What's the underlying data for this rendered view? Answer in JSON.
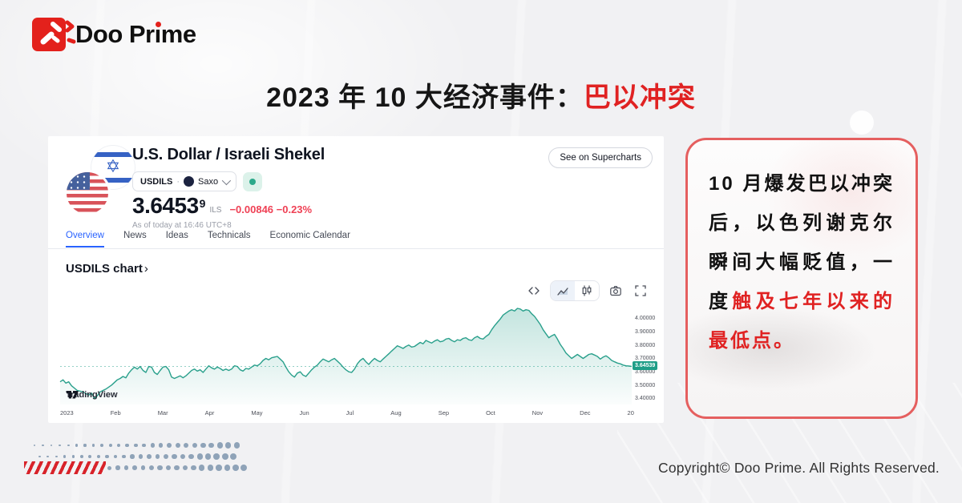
{
  "brand": {
    "text_before_i": "Doo Pr",
    "dotless_i": "ı",
    "text_after_i": "me"
  },
  "title": {
    "black": "2023 年 10 大经济事件：",
    "red": "巴以冲突"
  },
  "chart_card": {
    "symbol_title": "U.S. Dollar / Israeli Shekel",
    "ticker": "USDILS",
    "separator": "·",
    "exchange": "Saxo",
    "price": "3.6453",
    "price_sup": "9",
    "currency": "ILS",
    "change": "−0.00846 −0.23%",
    "as_of": "As of today at 16:46 UTC+8",
    "supercharts_button": "See on Supercharts",
    "tabs": [
      "Overview",
      "News",
      "Ideas",
      "Technicals",
      "Economic Calendar"
    ],
    "chart_heading": "USDILS chart",
    "chart_heading_chevron": "›",
    "toolbar_icons": [
      "code-icon",
      "area-chart-icon",
      "candlestick-icon",
      "camera-icon",
      "fullscreen-icon"
    ],
    "tv_attribution": "TradingView",
    "price_tag": "3.64539"
  },
  "chart_data": {
    "type": "area",
    "title": "USDILS chart",
    "x_ticks": [
      "2023",
      "Feb",
      "Mar",
      "Apr",
      "May",
      "Jun",
      "Jul",
      "Aug",
      "Sep",
      "Oct",
      "Nov",
      "Dec",
      "20"
    ],
    "y_ticks": [
      "4.00000",
      "3.90000",
      "3.80000",
      "3.70000",
      "3.60000",
      "3.50000",
      "3.40000"
    ],
    "ylim": [
      3.36,
      4.14
    ],
    "last_price": 3.64539,
    "line_color": "#2aa08c",
    "grid": false,
    "legend": false,
    "points": [
      [
        0,
        3.53
      ],
      [
        0.005,
        3.545
      ],
      [
        0.01,
        3.52
      ],
      [
        0.015,
        3.53
      ],
      [
        0.02,
        3.5
      ],
      [
        0.03,
        3.465
      ],
      [
        0.04,
        3.455
      ],
      [
        0.05,
        3.43
      ],
      [
        0.055,
        3.445
      ],
      [
        0.06,
        3.405
      ],
      [
        0.065,
        3.425
      ],
      [
        0.07,
        3.455
      ],
      [
        0.08,
        3.475
      ],
      [
        0.09,
        3.505
      ],
      [
        0.1,
        3.545
      ],
      [
        0.105,
        3.555
      ],
      [
        0.11,
        3.57
      ],
      [
        0.115,
        3.56
      ],
      [
        0.12,
        3.595
      ],
      [
        0.125,
        3.62
      ],
      [
        0.13,
        3.64
      ],
      [
        0.135,
        3.625
      ],
      [
        0.14,
        3.645
      ],
      [
        0.145,
        3.615
      ],
      [
        0.15,
        3.6
      ],
      [
        0.155,
        3.645
      ],
      [
        0.16,
        3.64
      ],
      [
        0.165,
        3.6
      ],
      [
        0.17,
        3.585
      ],
      [
        0.175,
        3.615
      ],
      [
        0.18,
        3.64
      ],
      [
        0.185,
        3.645
      ],
      [
        0.19,
        3.62
      ],
      [
        0.195,
        3.565
      ],
      [
        0.2,
        3.555
      ],
      [
        0.21,
        3.575
      ],
      [
        0.215,
        3.56
      ],
      [
        0.22,
        3.575
      ],
      [
        0.23,
        3.615
      ],
      [
        0.235,
        3.625
      ],
      [
        0.24,
        3.61
      ],
      [
        0.245,
        3.62
      ],
      [
        0.25,
        3.6
      ],
      [
        0.255,
        3.625
      ],
      [
        0.26,
        3.65
      ],
      [
        0.265,
        3.635
      ],
      [
        0.27,
        3.625
      ],
      [
        0.275,
        3.64
      ],
      [
        0.28,
        3.63
      ],
      [
        0.285,
        3.615
      ],
      [
        0.29,
        3.625
      ],
      [
        0.295,
        3.615
      ],
      [
        0.3,
        3.625
      ],
      [
        0.305,
        3.65
      ],
      [
        0.31,
        3.645
      ],
      [
        0.315,
        3.62
      ],
      [
        0.32,
        3.61
      ],
      [
        0.325,
        3.63
      ],
      [
        0.33,
        3.625
      ],
      [
        0.335,
        3.64
      ],
      [
        0.34,
        3.655
      ],
      [
        0.345,
        3.65
      ],
      [
        0.35,
        3.665
      ],
      [
        0.355,
        3.69
      ],
      [
        0.36,
        3.705
      ],
      [
        0.365,
        3.695
      ],
      [
        0.37,
        3.71
      ],
      [
        0.375,
        3.715
      ],
      [
        0.38,
        3.72
      ],
      [
        0.385,
        3.7
      ],
      [
        0.39,
        3.68
      ],
      [
        0.395,
        3.64
      ],
      [
        0.4,
        3.605
      ],
      [
        0.405,
        3.58
      ],
      [
        0.41,
        3.565
      ],
      [
        0.415,
        3.595
      ],
      [
        0.42,
        3.605
      ],
      [
        0.425,
        3.58
      ],
      [
        0.43,
        3.57
      ],
      [
        0.435,
        3.595
      ],
      [
        0.44,
        3.62
      ],
      [
        0.445,
        3.64
      ],
      [
        0.45,
        3.655
      ],
      [
        0.455,
        3.68
      ],
      [
        0.46,
        3.7
      ],
      [
        0.465,
        3.69
      ],
      [
        0.47,
        3.68
      ],
      [
        0.475,
        3.695
      ],
      [
        0.48,
        3.705
      ],
      [
        0.485,
        3.685
      ],
      [
        0.49,
        3.665
      ],
      [
        0.495,
        3.64
      ],
      [
        0.5,
        3.62
      ],
      [
        0.505,
        3.605
      ],
      [
        0.51,
        3.6
      ],
      [
        0.515,
        3.625
      ],
      [
        0.52,
        3.665
      ],
      [
        0.525,
        3.69
      ],
      [
        0.53,
        3.705
      ],
      [
        0.535,
        3.68
      ],
      [
        0.54,
        3.66
      ],
      [
        0.545,
        3.685
      ],
      [
        0.55,
        3.705
      ],
      [
        0.555,
        3.69
      ],
      [
        0.56,
        3.68
      ],
      [
        0.565,
        3.7
      ],
      [
        0.57,
        3.72
      ],
      [
        0.575,
        3.74
      ],
      [
        0.58,
        3.76
      ],
      [
        0.585,
        3.78
      ],
      [
        0.59,
        3.8
      ],
      [
        0.595,
        3.79
      ],
      [
        0.6,
        3.78
      ],
      [
        0.605,
        3.795
      ],
      [
        0.61,
        3.805
      ],
      [
        0.615,
        3.79
      ],
      [
        0.62,
        3.795
      ],
      [
        0.625,
        3.81
      ],
      [
        0.63,
        3.825
      ],
      [
        0.635,
        3.815
      ],
      [
        0.64,
        3.84
      ],
      [
        0.645,
        3.83
      ],
      [
        0.65,
        3.82
      ],
      [
        0.655,
        3.835
      ],
      [
        0.66,
        3.845
      ],
      [
        0.665,
        3.83
      ],
      [
        0.67,
        3.835
      ],
      [
        0.675,
        3.85
      ],
      [
        0.68,
        3.855
      ],
      [
        0.685,
        3.84
      ],
      [
        0.69,
        3.83
      ],
      [
        0.695,
        3.845
      ],
      [
        0.7,
        3.84
      ],
      [
        0.705,
        3.855
      ],
      [
        0.71,
        3.86
      ],
      [
        0.715,
        3.845
      ],
      [
        0.72,
        3.84
      ],
      [
        0.725,
        3.86
      ],
      [
        0.73,
        3.87
      ],
      [
        0.735,
        3.855
      ],
      [
        0.74,
        3.85
      ],
      [
        0.745,
        3.87
      ],
      [
        0.75,
        3.885
      ],
      [
        0.755,
        3.92
      ],
      [
        0.76,
        3.95
      ],
      [
        0.765,
        3.975
      ],
      [
        0.77,
        4.0
      ],
      [
        0.775,
        4.03
      ],
      [
        0.78,
        4.045
      ],
      [
        0.785,
        4.06
      ],
      [
        0.79,
        4.07
      ],
      [
        0.795,
        4.06
      ],
      [
        0.8,
        4.08
      ],
      [
        0.805,
        4.075
      ],
      [
        0.81,
        4.06
      ],
      [
        0.815,
        4.07
      ],
      [
        0.82,
        4.065
      ],
      [
        0.825,
        4.04
      ],
      [
        0.83,
        4.02
      ],
      [
        0.835,
        3.99
      ],
      [
        0.84,
        3.96
      ],
      [
        0.845,
        3.92
      ],
      [
        0.85,
        3.89
      ],
      [
        0.855,
        3.86
      ],
      [
        0.86,
        3.875
      ],
      [
        0.865,
        3.885
      ],
      [
        0.87,
        3.85
      ],
      [
        0.875,
        3.81
      ],
      [
        0.88,
        3.78
      ],
      [
        0.885,
        3.745
      ],
      [
        0.89,
        3.725
      ],
      [
        0.895,
        3.705
      ],
      [
        0.9,
        3.72
      ],
      [
        0.905,
        3.735
      ],
      [
        0.91,
        3.72
      ],
      [
        0.915,
        3.705
      ],
      [
        0.92,
        3.72
      ],
      [
        0.925,
        3.735
      ],
      [
        0.93,
        3.74
      ],
      [
        0.935,
        3.73
      ],
      [
        0.94,
        3.72
      ],
      [
        0.945,
        3.7
      ],
      [
        0.95,
        3.715
      ],
      [
        0.955,
        3.725
      ],
      [
        0.96,
        3.71
      ],
      [
        0.965,
        3.69
      ],
      [
        0.97,
        3.68
      ],
      [
        0.975,
        3.67
      ],
      [
        0.98,
        3.665
      ],
      [
        0.985,
        3.655
      ],
      [
        0.99,
        3.65
      ],
      [
        0.995,
        3.648
      ],
      [
        1,
        3.6454
      ]
    ]
  },
  "note_card": {
    "text_black": "10 月爆发巴以冲突后，以色列谢克尔瞬间大幅贬值，一度",
    "text_red": "触及七年以来的最低点。"
  },
  "footer": {
    "copyright": "Copyright© Doo Prime. All Rights Reserved."
  },
  "colors": {
    "brand_red": "#e3211c",
    "highlight_red": "#e02222",
    "note_border": "#e55f5f",
    "chart_line": "#2aa08c",
    "price_tag_bg": "#1f9e88",
    "change_red": "#ef4155",
    "tab_active_blue": "#2962ff",
    "dot_gray_blue": "#8fa3b8"
  }
}
